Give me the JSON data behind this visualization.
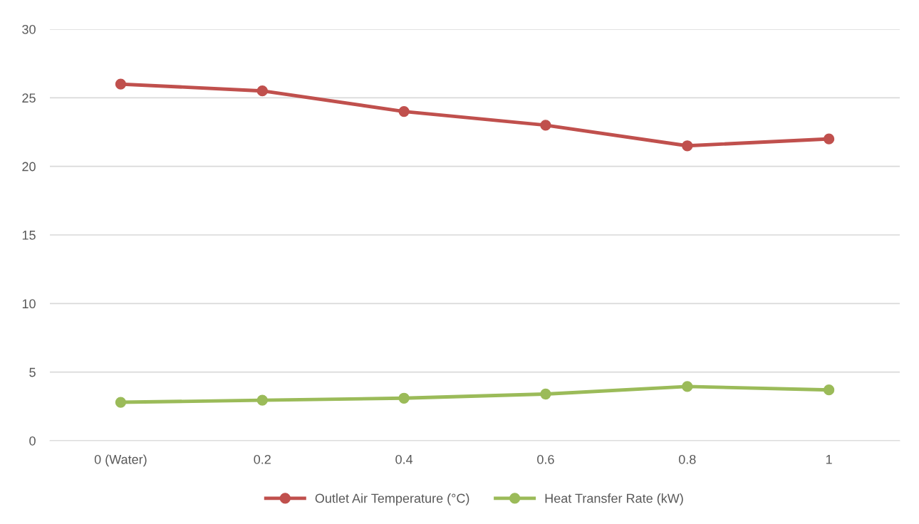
{
  "chart_data": {
    "type": "line",
    "categories": [
      "0 (Water)",
      "0.2",
      "0.4",
      "0.6",
      "0.8",
      "1"
    ],
    "series": [
      {
        "name": "Outlet Air Temperature (°C)",
        "color": "#c0504d",
        "values": [
          26,
          25.5,
          24,
          23,
          21.5,
          22
        ]
      },
      {
        "name": "Heat Transfer Rate (kW)",
        "color": "#9bbb59",
        "values": [
          2.8,
          2.95,
          3.1,
          3.4,
          3.95,
          3.7
        ]
      }
    ],
    "ylim": [
      0,
      30
    ],
    "yticks": [
      0,
      5,
      10,
      15,
      20,
      25,
      30
    ],
    "grid": "y",
    "legend": "bottom",
    "marker": "circle",
    "line_style": "solid"
  }
}
